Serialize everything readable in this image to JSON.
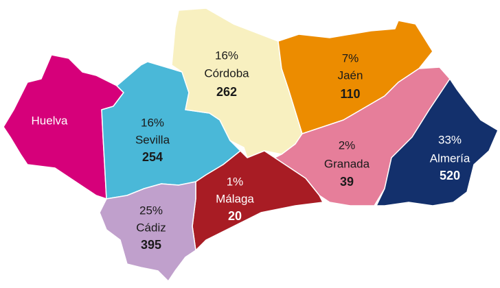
{
  "provinces": [
    {
      "name": "Huelva"
    },
    {
      "name": "Sevilla",
      "percent": "16%",
      "value": "254"
    },
    {
      "name": "Córdoba",
      "percent": "16%",
      "value": "262"
    },
    {
      "name": "Jaén",
      "percent": "7%",
      "value": "110"
    },
    {
      "name": "Granada",
      "percent": "2%",
      "value": "39"
    },
    {
      "name": "Almería",
      "percent": "33%",
      "value": "520"
    },
    {
      "name": "Málaga",
      "percent": "1%",
      "value": "20"
    },
    {
      "name": "Cádiz",
      "percent": "25%",
      "value": "395"
    }
  ]
}
